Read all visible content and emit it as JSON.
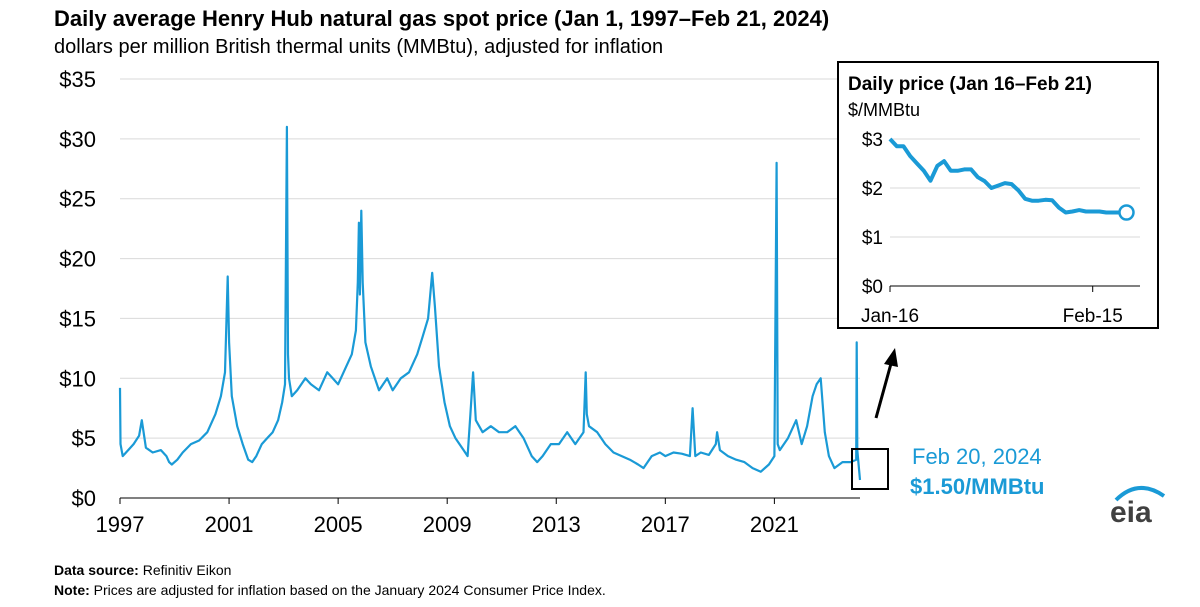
{
  "title": "Daily average Henry Hub natural gas spot price (Jan 1, 1997–Feb 21, 2024)",
  "subtitle": "dollars per million British thermal units (MMBtu), adjusted for inflation",
  "colors": {
    "series": "#1a9ad6",
    "grid": "#d9d9d9",
    "frame": "#000000"
  },
  "callout": {
    "date": "Feb 20, 2024",
    "value": "$1.50/MMBtu"
  },
  "logo": {
    "text": "eia",
    "icon": "eia-logo-icon"
  },
  "footer": {
    "source_label": "Data source:",
    "source_text": "Refinitiv Eikon",
    "note_label": "Note:",
    "note_text": "Prices are adjusted for inflation based on the January 2024 Consumer Price Index."
  },
  "chart_data": [
    {
      "type": "line",
      "id": "main",
      "title": "",
      "xlabel": "",
      "ylabel": "",
      "xlim": [
        1997.0,
        2024.14
      ],
      "ylim": [
        0,
        35
      ],
      "yticks": [
        0,
        5,
        10,
        15,
        20,
        25,
        30,
        35
      ],
      "ytick_labels": [
        "$0",
        "$5",
        "$10",
        "$15",
        "$20",
        "$25",
        "$30",
        "$35"
      ],
      "xticks": [
        1997,
        2001,
        2005,
        2009,
        2013,
        2017,
        2021
      ],
      "xtick_labels": [
        "1997",
        "2001",
        "2005",
        "2009",
        "2013",
        "2017",
        "2021"
      ],
      "grid": "horizontal",
      "series": [
        {
          "x": [
            1997.0,
            1997.02,
            1997.1,
            1997.3,
            1997.5,
            1997.7,
            1997.8,
            1997.95,
            1998.2,
            1998.5,
            1998.7,
            1998.8,
            1998.9,
            1999.1,
            1999.3,
            1999.6,
            1999.9,
            2000.2,
            2000.5,
            2000.7,
            2000.85,
            2000.95,
            2001.0,
            2001.1,
            2001.3,
            2001.5,
            2001.7,
            2001.85,
            2002.0,
            2002.2,
            2002.4,
            2002.6,
            2002.8,
            2002.95,
            2003.05,
            2003.12,
            2003.16,
            2003.2,
            2003.3,
            2003.5,
            2003.8,
            2004.0,
            2004.3,
            2004.6,
            2004.8,
            2005.0,
            2005.3,
            2005.5,
            2005.65,
            2005.72,
            2005.76,
            2005.8,
            2005.85,
            2005.9,
            2006.0,
            2006.2,
            2006.5,
            2006.8,
            2007.0,
            2007.3,
            2007.6,
            2007.9,
            2008.1,
            2008.3,
            2008.45,
            2008.55,
            2008.7,
            2008.9,
            2009.1,
            2009.3,
            2009.6,
            2009.75,
            2009.85,
            2009.95,
            2010.05,
            2010.3,
            2010.6,
            2010.9,
            2011.2,
            2011.5,
            2011.8,
            2012.1,
            2012.3,
            2012.5,
            2012.8,
            2013.1,
            2013.4,
            2013.7,
            2014.0,
            2014.08,
            2014.12,
            2014.2,
            2014.5,
            2014.8,
            2015.1,
            2015.4,
            2015.7,
            2016.0,
            2016.2,
            2016.5,
            2016.8,
            2017.0,
            2017.3,
            2017.6,
            2017.9,
            2018.0,
            2018.1,
            2018.3,
            2018.6,
            2018.85,
            2018.9,
            2019.0,
            2019.3,
            2019.6,
            2019.9,
            2020.2,
            2020.5,
            2020.8,
            2021.0,
            2021.08,
            2021.12,
            2021.2,
            2021.5,
            2021.8,
            2022.0,
            2022.2,
            2022.4,
            2022.55,
            2022.7,
            2022.85,
            2023.0,
            2023.2,
            2023.5,
            2023.8,
            2024.0,
            2024.02,
            2024.04,
            2024.14
          ],
          "y": [
            9.2,
            4.5,
            3.5,
            4.0,
            4.5,
            5.2,
            6.5,
            4.2,
            3.8,
            4.0,
            3.5,
            3.0,
            2.8,
            3.2,
            3.8,
            4.5,
            4.8,
            5.5,
            7.0,
            8.5,
            10.5,
            18.5,
            13.0,
            8.5,
            6.0,
            4.5,
            3.2,
            3.0,
            3.5,
            4.5,
            5.0,
            5.5,
            6.5,
            8.0,
            9.5,
            31.0,
            12.0,
            10.0,
            8.5,
            9.0,
            10.0,
            9.5,
            9.0,
            10.5,
            10.0,
            9.5,
            11.0,
            12.0,
            14.0,
            18.0,
            23.0,
            17.0,
            24.0,
            18.0,
            13.0,
            11.0,
            9.0,
            10.0,
            9.0,
            10.0,
            10.5,
            12.0,
            13.5,
            15.0,
            18.8,
            16.0,
            11.0,
            8.0,
            6.0,
            5.0,
            4.0,
            3.5,
            7.0,
            10.5,
            6.5,
            5.5,
            6.0,
            5.5,
            5.5,
            6.0,
            5.0,
            3.5,
            3.0,
            3.5,
            4.5,
            4.5,
            5.5,
            4.5,
            5.5,
            10.5,
            7.0,
            6.0,
            5.5,
            4.5,
            3.8,
            3.5,
            3.2,
            2.8,
            2.5,
            3.5,
            3.8,
            3.5,
            3.8,
            3.7,
            3.5,
            7.5,
            3.5,
            3.8,
            3.6,
            4.5,
            5.5,
            4.0,
            3.5,
            3.2,
            3.0,
            2.5,
            2.2,
            2.8,
            3.5,
            28.0,
            4.5,
            4.0,
            5.0,
            6.5,
            4.5,
            6.0,
            8.5,
            9.5,
            10.0,
            5.5,
            3.5,
            2.5,
            3.0,
            3.0,
            3.2,
            13.0,
            4.0,
            1.5
          ]
        }
      ]
    },
    {
      "type": "line",
      "id": "inset",
      "title": "Daily price (Jan 16–Feb 21)",
      "ylabel": "$/MMBtu",
      "xlim": [
        0,
        37
      ],
      "ylim": [
        0,
        3
      ],
      "yticks": [
        0,
        1,
        2,
        3
      ],
      "ytick_labels": [
        "$0",
        "$1",
        "$2",
        "$3"
      ],
      "xtick_labels": [
        "Jan-16",
        "Feb-15"
      ],
      "xticks": [
        0,
        30
      ],
      "grid": "horizontal",
      "series": [
        {
          "x": [
            0,
            1,
            2,
            3,
            4,
            5,
            6,
            7,
            8,
            9,
            10,
            11,
            12,
            13,
            14,
            15,
            16,
            17,
            18,
            19,
            20,
            21,
            22,
            23,
            24,
            25,
            26,
            27,
            28,
            29,
            30,
            31,
            32,
            33,
            34,
            35
          ],
          "y": [
            3.0,
            2.85,
            2.85,
            2.65,
            2.5,
            2.35,
            2.15,
            2.45,
            2.55,
            2.35,
            2.35,
            2.38,
            2.38,
            2.22,
            2.14,
            2.0,
            2.05,
            2.1,
            2.08,
            1.95,
            1.78,
            1.74,
            1.74,
            1.76,
            1.75,
            1.6,
            1.5,
            1.52,
            1.55,
            1.52,
            1.52,
            1.52,
            1.5,
            1.5,
            1.5,
            1.5
          ]
        }
      ]
    }
  ]
}
